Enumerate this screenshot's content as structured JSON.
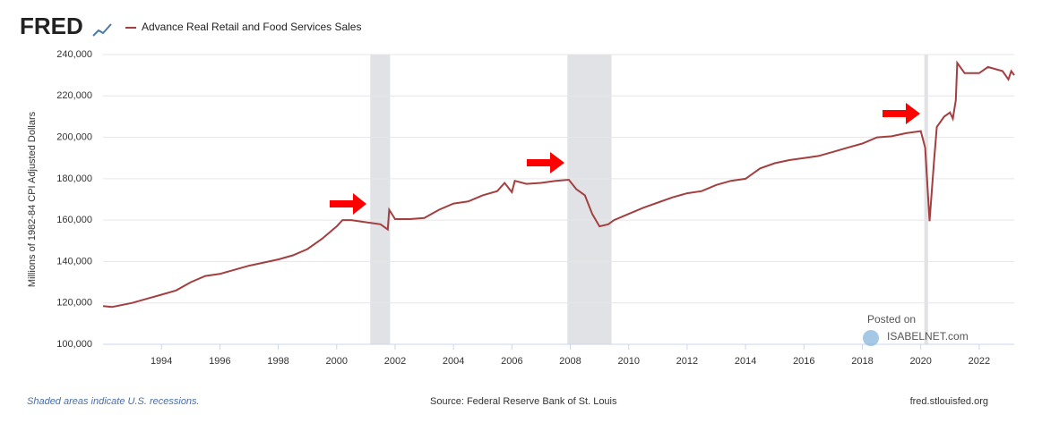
{
  "chart_data": {
    "type": "line",
    "logo": "FRED",
    "title": "Advance Real Retail and Food Services Sales",
    "y_label": "Millions of 1982-84 CPI Adjusted Dollars",
    "note": "Shaded areas indicate U.S. recessions.",
    "source": "Source: Federal Reserve Bank of St. Louis",
    "site": "fred.stlouisfed.org",
    "watermark": [
      "Posted on",
      "ISABELNET.com"
    ],
    "x": [
      1992.0,
      1992.3,
      1993,
      1993.5,
      1994,
      1994.5,
      1995,
      1995.5,
      1996,
      1996.5,
      1997,
      1997.5,
      1998,
      1998.5,
      1999,
      1999.5,
      2000,
      2000.2,
      2000.5,
      2001,
      2001.5,
      2001.75,
      2001.8,
      2002,
      2002.5,
      2003,
      2003.5,
      2004,
      2004.5,
      2005,
      2005.5,
      2005.75,
      2006,
      2006.1,
      2006.5,
      2007,
      2007.5,
      2007.95,
      2008.2,
      2008.5,
      2008.75,
      2009,
      2009.3,
      2009.5,
      2010,
      2010.5,
      2011,
      2011.5,
      2012,
      2012.5,
      2013,
      2013.5,
      2014,
      2014.5,
      2015,
      2015.5,
      2016,
      2016.5,
      2017,
      2017.5,
      2018,
      2018.5,
      2019,
      2019.5,
      2020,
      2020.15,
      2020.3,
      2020.45,
      2020.55,
      2020.8,
      2021,
      2021.1,
      2021.2,
      2021.25,
      2021.5,
      2022,
      2022.3,
      2022.8,
      2023,
      2023.1,
      2023.2
    ],
    "series": [
      {
        "name": "Advance Real Retail and Food Services Sales",
        "color": "#a33f3f",
        "values": [
          118500,
          118000,
          120000,
          122000,
          124000,
          126000,
          130000,
          133000,
          134000,
          136000,
          138000,
          139500,
          141000,
          143000,
          146000,
          151000,
          157000,
          160000,
          160000,
          159000,
          158000,
          155500,
          165000,
          160500,
          160500,
          161000,
          165000,
          168000,
          169000,
          172000,
          174000,
          178000,
          173500,
          179000,
          177500,
          178000,
          179000,
          179500,
          175000,
          172000,
          163000,
          157000,
          158000,
          160000,
          163000,
          166000,
          168500,
          171000,
          173000,
          174000,
          177000,
          179000,
          180000,
          185000,
          187500,
          189000,
          190000,
          191000,
          193000,
          195000,
          197000,
          200000,
          200500,
          202000,
          203000,
          195000,
          159500,
          188000,
          205000,
          210000,
          212000,
          209000,
          218000,
          236000,
          231000,
          231000,
          234000,
          232000,
          228000,
          232000,
          230000
        ]
      }
    ],
    "recessions": [
      [
        2001.15,
        2001.83
      ],
      [
        2007.9,
        2009.41
      ],
      [
        2020.12,
        2020.25
      ]
    ],
    "xlim": [
      1992.0,
      2023.2
    ],
    "ylim": [
      100000,
      240000
    ],
    "xticks": [
      1994,
      1996,
      1998,
      2000,
      2002,
      2004,
      2006,
      2008,
      2010,
      2012,
      2014,
      2016,
      2018,
      2020,
      2022
    ],
    "yticks": [
      {
        "value": 100000,
        "label": "100,000"
      },
      {
        "value": 120000,
        "label": "120,000"
      },
      {
        "value": 140000,
        "label": "140,000"
      },
      {
        "value": 160000,
        "label": "160,000"
      },
      {
        "value": 180000,
        "label": "180,000"
      },
      {
        "value": 200000,
        "label": "200,000"
      },
      {
        "value": 220000,
        "label": "220,000"
      },
      {
        "value": 240000,
        "label": "240,000"
      }
    ],
    "grid": true
  }
}
